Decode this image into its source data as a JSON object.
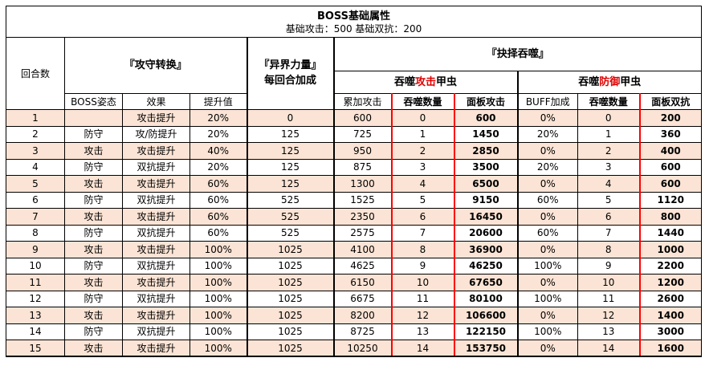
{
  "title": {
    "main": "BOSS基础属性",
    "sub": "基础攻击：500 基础双抗：200"
  },
  "header": {
    "round": "回合数",
    "transform_group": "『攻守转换』",
    "otherworld_line1": "『异界力量』",
    "otherworld_line2": "每回合加成",
    "devour_group": "『抉择吞噬』",
    "attack_prefix": "吞噬",
    "attack_highlight": "攻击",
    "attack_suffix": "甲虫",
    "defense_prefix": "吞噬",
    "defense_highlight": "防御",
    "defense_suffix": "甲虫",
    "columns": {
      "boss_stance": "BOSS姿态",
      "effect": "效果",
      "increase": "提升值",
      "cum_attack": "累加攻击",
      "devour_count_atk": "吞噬数量",
      "panel_attack": "面板攻击",
      "buff_bonus": "BUFF加成",
      "devour_count_def": "吞噬数量",
      "panel_defense": "面板双抗"
    }
  },
  "rows": [
    {
      "round": "1",
      "stance": "",
      "effect": "攻击提升",
      "inc": "20%",
      "power": "0",
      "cum": "600",
      "natk": "0",
      "patk": "600",
      "buff": "0%",
      "ndef": "0",
      "pdef": "200"
    },
    {
      "round": "2",
      "stance": "防守",
      "effect": "攻/防提升",
      "inc": "20%",
      "power": "125",
      "cum": "725",
      "natk": "1",
      "patk": "1450",
      "buff": "20%",
      "ndef": "1",
      "pdef": "360"
    },
    {
      "round": "3",
      "stance": "攻击",
      "effect": "攻击提升",
      "inc": "40%",
      "power": "125",
      "cum": "950",
      "natk": "2",
      "patk": "2850",
      "buff": "0%",
      "ndef": "2",
      "pdef": "400"
    },
    {
      "round": "4",
      "stance": "防守",
      "effect": "双抗提升",
      "inc": "20%",
      "power": "125",
      "cum": "875",
      "natk": "3",
      "patk": "3500",
      "buff": "20%",
      "ndef": "3",
      "pdef": "600"
    },
    {
      "round": "5",
      "stance": "攻击",
      "effect": "攻击提升",
      "inc": "60%",
      "power": "125",
      "cum": "1300",
      "natk": "4",
      "patk": "6500",
      "buff": "0%",
      "ndef": "4",
      "pdef": "600"
    },
    {
      "round": "6",
      "stance": "防守",
      "effect": "双抗提升",
      "inc": "60%",
      "power": "525",
      "cum": "1525",
      "natk": "5",
      "patk": "9150",
      "buff": "60%",
      "ndef": "5",
      "pdef": "1120"
    },
    {
      "round": "7",
      "stance": "攻击",
      "effect": "攻击提升",
      "inc": "60%",
      "power": "525",
      "cum": "2350",
      "natk": "6",
      "patk": "16450",
      "buff": "0%",
      "ndef": "6",
      "pdef": "800"
    },
    {
      "round": "8",
      "stance": "防守",
      "effect": "双抗提升",
      "inc": "60%",
      "power": "525",
      "cum": "2575",
      "natk": "7",
      "patk": "20600",
      "buff": "60%",
      "ndef": "7",
      "pdef": "1440"
    },
    {
      "round": "9",
      "stance": "攻击",
      "effect": "攻击提升",
      "inc": "100%",
      "power": "1025",
      "cum": "4100",
      "natk": "8",
      "patk": "36900",
      "buff": "0%",
      "ndef": "8",
      "pdef": "1000"
    },
    {
      "round": "10",
      "stance": "防守",
      "effect": "双抗提升",
      "inc": "100%",
      "power": "1025",
      "cum": "4625",
      "natk": "9",
      "patk": "46250",
      "buff": "100%",
      "ndef": "9",
      "pdef": "2200"
    },
    {
      "round": "11",
      "stance": "攻击",
      "effect": "攻击提升",
      "inc": "100%",
      "power": "1025",
      "cum": "6150",
      "natk": "10",
      "patk": "67650",
      "buff": "0%",
      "ndef": "10",
      "pdef": "1200"
    },
    {
      "round": "12",
      "stance": "防守",
      "effect": "双抗提升",
      "inc": "100%",
      "power": "1025",
      "cum": "6675",
      "natk": "11",
      "patk": "80100",
      "buff": "100%",
      "ndef": "11",
      "pdef": "2600"
    },
    {
      "round": "13",
      "stance": "攻击",
      "effect": "攻击提升",
      "inc": "100%",
      "power": "1025",
      "cum": "8200",
      "natk": "12",
      "patk": "106600",
      "buff": "0%",
      "ndef": "12",
      "pdef": "1400"
    },
    {
      "round": "14",
      "stance": "防守",
      "effect": "双抗提升",
      "inc": "100%",
      "power": "1025",
      "cum": "8725",
      "natk": "13",
      "patk": "122150",
      "buff": "100%",
      "ndef": "13",
      "pdef": "3000"
    },
    {
      "round": "15",
      "stance": "攻击",
      "effect": "攻击提升",
      "inc": "100%",
      "power": "1025",
      "cum": "10250",
      "natk": "14",
      "patk": "153750",
      "buff": "0%",
      "ndef": "14",
      "pdef": "1600"
    }
  ],
  "colors": {
    "odd_row": "#fbe4d5",
    "even_row": "#ffffff",
    "highlight_red": "#e00000",
    "border_red": "#ff0000"
  }
}
